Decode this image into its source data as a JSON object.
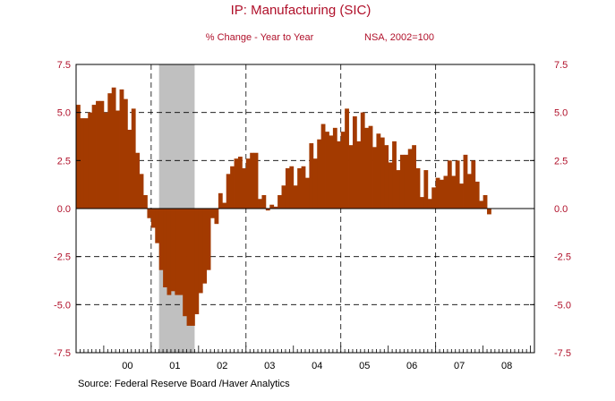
{
  "chart_data": {
    "type": "bar",
    "title": "IP: Manufacturing (SIC)",
    "subtitle_left": "% Change - Year to Year",
    "subtitle_right": "NSA, 2002=100",
    "source": "Source:  Federal Reserve Board /Haver Analytics",
    "frequency": "monthly",
    "start": "1999-06",
    "ylim": [
      -7.5,
      7.5
    ],
    "yticks": [
      "7.5",
      "5.0",
      "2.5",
      "0.0",
      "-2.5",
      "-5.0",
      "-7.5"
    ],
    "ytick_values": [
      7.5,
      5.0,
      2.5,
      0.0,
      -2.5,
      -5.0,
      -7.5
    ],
    "x_year_labels": [
      "00",
      "01",
      "02",
      "03",
      "04",
      "05",
      "06",
      "07",
      "08"
    ],
    "grid": true,
    "recession_shading": {
      "start": "2001-03",
      "end": "2001-11",
      "color": "#c0c0c0"
    },
    "bar_color": "#a33a00",
    "values": [
      5.4,
      4.7,
      4.7,
      5.0,
      5.4,
      5.6,
      5.6,
      5.0,
      6.0,
      6.3,
      5.1,
      6.2,
      5.7,
      4.1,
      5.2,
      2.9,
      1.8,
      0.7,
      -0.5,
      -1.0,
      -1.8,
      -3.2,
      -4.1,
      -4.5,
      -4.3,
      -4.5,
      -4.5,
      -5.6,
      -6.1,
      -6.1,
      -5.5,
      -4.4,
      -3.9,
      -3.2,
      -0.5,
      -0.8,
      0.8,
      0.3,
      1.8,
      2.2,
      2.6,
      2.7,
      2.1,
      2.6,
      2.9,
      2.9,
      0.5,
      0.7,
      -0.1,
      0.2,
      0.1,
      0.7,
      1.2,
      2.1,
      2.2,
      1.2,
      2.1,
      2.2,
      1.6,
      3.4,
      2.6,
      3.6,
      4.4,
      4.0,
      3.8,
      4.2,
      3.5,
      4.0,
      5.2,
      3.3,
      4.8,
      3.5,
      5.0,
      4.2,
      4.3,
      3.2,
      3.9,
      3.7,
      3.3,
      2.4,
      3.5,
      2.0,
      2.8,
      2.8,
      3.1,
      3.3,
      2.1,
      0.6,
      2.0,
      0.5,
      1.1,
      1.6,
      1.5,
      1.7,
      2.5,
      1.7,
      2.5,
      1.3,
      2.8,
      1.8,
      2.5,
      1.4,
      0.4,
      0.7,
      -0.3
    ]
  }
}
